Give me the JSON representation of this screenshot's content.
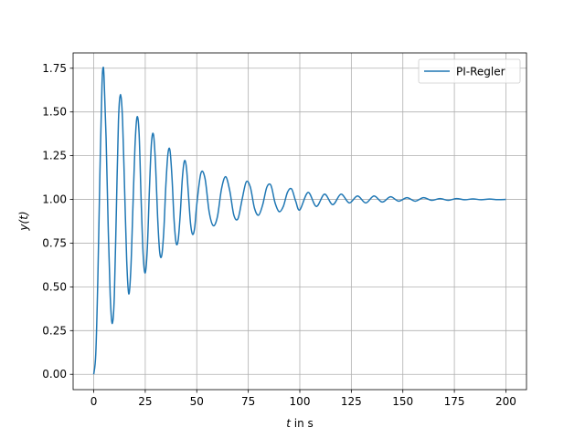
{
  "chart_data": {
    "type": "line",
    "xlabel_var": "t",
    "xlabel_rest": " in s",
    "ylabel": "y(t)",
    "xlim": [
      -10,
      210
    ],
    "ylim": [
      -0.0875,
      1.8375
    ],
    "xticks": [
      0,
      25,
      50,
      75,
      100,
      125,
      150,
      175,
      200
    ],
    "xtick_labels": [
      "0",
      "25",
      "50",
      "75",
      "100",
      "125",
      "150",
      "175",
      "200"
    ],
    "yticks": [
      0.0,
      0.25,
      0.5,
      0.75,
      1.0,
      1.25,
      1.5,
      1.75
    ],
    "ytick_labels": [
      "0.00",
      "0.25",
      "0.50",
      "0.75",
      "1.00",
      "1.25",
      "1.50",
      "1.75"
    ],
    "grid": true,
    "legend_position": "top-right",
    "line_color": "#1f77b4",
    "series": [
      {
        "name": "PI-Regler",
        "x": [
          0,
          1,
          2,
          3,
          4,
          4.5,
          5,
          6,
          7,
          8,
          9,
          10,
          11,
          12,
          13,
          14,
          15,
          16,
          17,
          18,
          19,
          20,
          21,
          22,
          23,
          24,
          25,
          26,
          27,
          28,
          29,
          30,
          31,
          32,
          33,
          34,
          35,
          36,
          37,
          38,
          39,
          40,
          41,
          42,
          43,
          44,
          45,
          46,
          47,
          48,
          49,
          50,
          52,
          54,
          56,
          58,
          60,
          62,
          64,
          66,
          68,
          70,
          72,
          74,
          76,
          78,
          80,
          82,
          84,
          86,
          88,
          90,
          92,
          94,
          96,
          98,
          100,
          104,
          108,
          112,
          116,
          120,
          124,
          128,
          132,
          136,
          140,
          144,
          148,
          152,
          156,
          160,
          164,
          168,
          172,
          176,
          180,
          184,
          188,
          192,
          196,
          200
        ],
        "y": [
          0.0,
          0.12,
          0.55,
          1.15,
          1.65,
          1.75,
          1.7,
          1.35,
          0.85,
          0.45,
          0.29,
          0.45,
          0.95,
          1.45,
          1.6,
          1.45,
          1.05,
          0.65,
          0.46,
          0.6,
          0.95,
          1.3,
          1.47,
          1.38,
          1.0,
          0.68,
          0.58,
          0.72,
          1.05,
          1.32,
          1.37,
          1.2,
          0.9,
          0.7,
          0.68,
          0.82,
          1.08,
          1.26,
          1.28,
          1.12,
          0.88,
          0.75,
          0.77,
          0.92,
          1.12,
          1.22,
          1.18,
          1.02,
          0.86,
          0.8,
          0.84,
          0.97,
          1.15,
          1.12,
          0.93,
          0.85,
          0.9,
          1.06,
          1.13,
          1.05,
          0.91,
          0.89,
          1.0,
          1.1,
          1.07,
          0.95,
          0.91,
          0.97,
          1.07,
          1.08,
          0.98,
          0.93,
          0.96,
          1.04,
          1.06,
          0.99,
          0.94,
          1.04,
          0.96,
          1.03,
          0.97,
          1.03,
          0.98,
          1.02,
          0.98,
          1.02,
          0.985,
          1.015,
          0.99,
          1.01,
          0.99,
          1.01,
          0.995,
          1.005,
          0.995,
          1.005,
          0.998,
          1.003,
          0.998,
          1.002,
          0.999,
          1.0
        ]
      }
    ]
  }
}
